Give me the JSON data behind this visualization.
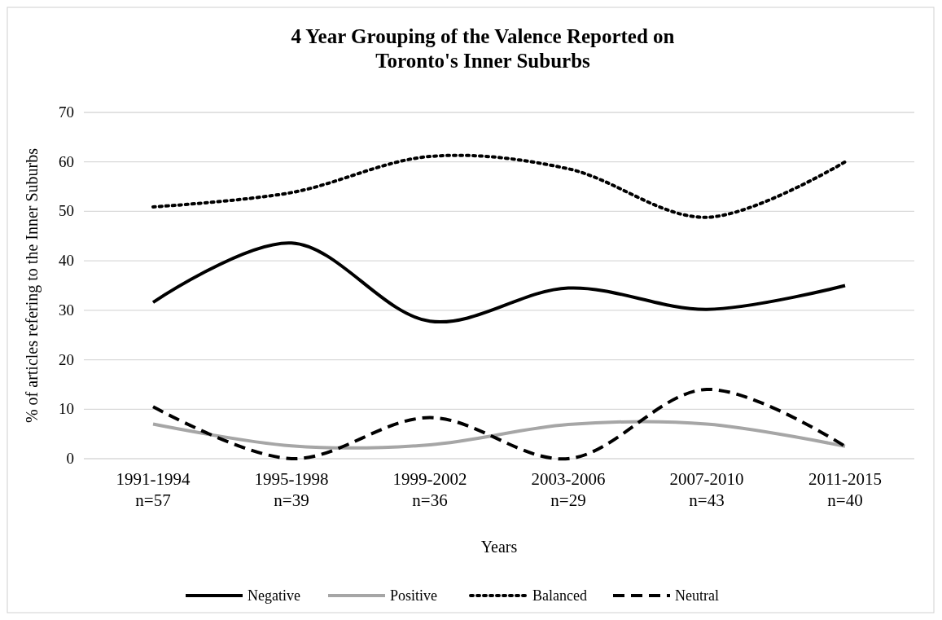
{
  "chart_data": {
    "type": "line",
    "title": "4 Year Grouping of the Valence Reported on\nToronto's Inner Suburbs",
    "xlabel": "Years",
    "ylabel": "% of articles refering to the Inner Suburbs",
    "categories": [
      "1991-1994\nn=57",
      "1995-1998\nn=39",
      "1999-2002\nn=36",
      "2003-2006\nn=29",
      "2007-2010\nn=43",
      "2011-2015\nn=40"
    ],
    "series": [
      {
        "name": "Negative",
        "color": "#000000",
        "line_style": "solid",
        "values": [
          31.6,
          43.6,
          27.8,
          34.5,
          30.2,
          35.0
        ]
      },
      {
        "name": "Positive",
        "color": "#a6a6a6",
        "line_style": "solid",
        "values": [
          7.0,
          2.6,
          2.8,
          6.9,
          7.0,
          2.5
        ]
      },
      {
        "name": "Balanced",
        "color": "#000000",
        "line_style": "dotted",
        "values": [
          50.9,
          53.8,
          61.1,
          58.6,
          48.8,
          60.0
        ]
      },
      {
        "name": "Neutral",
        "color": "#000000",
        "line_style": "dashed",
        "values": [
          10.5,
          0,
          8.3,
          0,
          14.0,
          2.5
        ]
      }
    ],
    "ylim": [
      0,
      70
    ],
    "yticks": [
      0,
      10,
      20,
      30,
      40,
      50,
      60,
      70
    ],
    "grid": "y",
    "legend": "bottom"
  }
}
